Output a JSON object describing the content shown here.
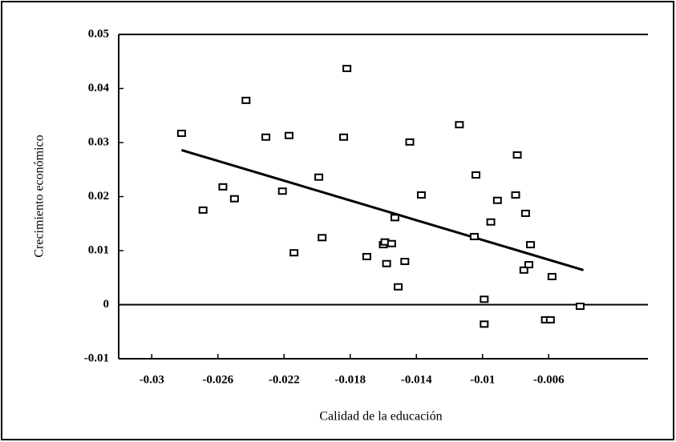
{
  "chart_data": {
    "type": "scatter",
    "x_label": "Calidad de la educación",
    "y_label": "Crecimiento económico",
    "x": [
      -0.0282,
      -0.0269,
      -0.0257,
      -0.025,
      -0.0243,
      -0.0231,
      -0.0217,
      -0.0221,
      -0.0214,
      -0.0199,
      -0.0197,
      -0.0184,
      -0.0182,
      -0.017,
      -0.016,
      -0.0159,
      -0.0158,
      -0.0155,
      -0.0153,
      -0.0151,
      -0.0147,
      -0.0144,
      -0.0137,
      -0.0114,
      -0.0104,
      -0.0105,
      -0.0099,
      -0.0099,
      -0.0095,
      -0.0091,
      -0.008,
      -0.0079,
      -0.0075,
      -0.0074,
      -0.0072,
      -0.0071,
      -0.0062,
      -0.0059,
      -0.0058,
      -0.0041
    ],
    "values": [
      0.0317,
      0.0175,
      0.0218,
      0.0196,
      0.0378,
      0.031,
      0.0313,
      0.021,
      0.0096,
      0.0236,
      0.0124,
      0.031,
      0.0437,
      0.0089,
      0.0111,
      0.0116,
      0.0076,
      0.0113,
      0.0161,
      0.0033,
      0.008,
      0.0301,
      0.0203,
      0.0333,
      0.024,
      0.0126,
      0.001,
      -0.0036,
      0.0153,
      0.0193,
      0.0203,
      0.0277,
      0.0064,
      0.0169,
      0.0074,
      0.0111,
      -0.0028,
      -0.0028,
      0.0052,
      -0.0003
    ],
    "trend_line": {
      "x": [
        -0.0282,
        -0.0039
      ],
      "y": [
        0.0286,
        0.0064
      ]
    },
    "color": "#000000",
    "xlim": [
      -0.032,
      0
    ],
    "xticks": [
      -0.03,
      -0.026,
      -0.022,
      -0.018,
      -0.014,
      -0.01,
      -0.006
    ],
    "ylim": [
      -0.01,
      0.05
    ],
    "yticks": [
      0.05,
      0.04,
      0.03,
      0.02,
      0.01,
      0,
      -0.01
    ]
  }
}
